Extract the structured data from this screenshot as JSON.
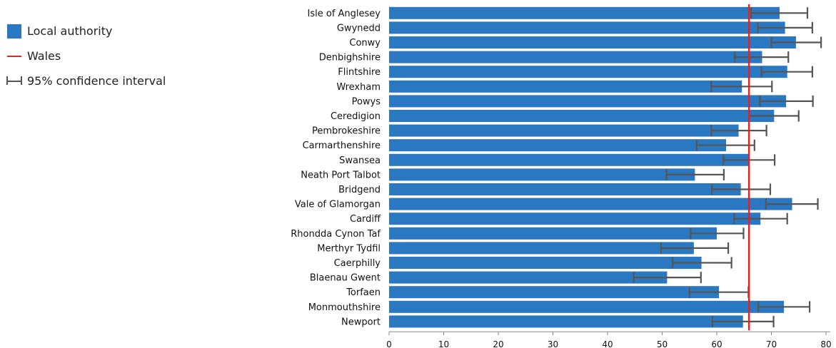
{
  "legend": {
    "items": [
      {
        "label": "Local authority",
        "color": "#2a78c1",
        "kind": "box"
      },
      {
        "label": "Wales",
        "color": "#e8201f",
        "kind": "line"
      },
      {
        "label": "95% confidence interval",
        "color": "#555555",
        "kind": "ci"
      }
    ]
  },
  "chart_data": {
    "type": "bar",
    "orientation": "horizontal",
    "title": "",
    "xlabel": "",
    "ylabel": "",
    "xlim": [
      0,
      80
    ],
    "ticks": [
      0,
      10,
      20,
      30,
      40,
      50,
      60,
      70,
      80
    ],
    "grid": false,
    "legend_position": "top-left",
    "bar_color": "#2a78c1",
    "reference": {
      "name": "Wales",
      "value": 65.9,
      "color": "#e8201f"
    },
    "ci_color": "#555555",
    "categories": [
      "Isle of Anglesey",
      "Gwynedd",
      "Conwy",
      "Denbighshire",
      "Flintshire",
      "Wrexham",
      "Powys",
      "Ceredigion",
      "Pembrokeshire",
      "Carmarthenshire",
      "Swansea",
      "Neath Port Talbot",
      "Bridgend",
      "Vale of Glamorgan",
      "Cardiff",
      "Rhondda Cynon Taf",
      "Merthyr Tydfil",
      "Caerphilly",
      "Blaenau Gwent",
      "Torfaen",
      "Monmouthshire",
      "Newport"
    ],
    "values": [
      71.5,
      72.5,
      74.5,
      68.3,
      72.9,
      64.6,
      72.7,
      70.5,
      64.0,
      61.7,
      65.8,
      56.0,
      64.4,
      73.8,
      68.0,
      60.0,
      55.8,
      57.2,
      50.9,
      60.4,
      72.3,
      64.8
    ],
    "ci_lower": [
      66.3,
      67.5,
      70.0,
      63.3,
      68.2,
      59.0,
      67.9,
      65.9,
      59.0,
      56.3,
      61.2,
      50.8,
      59.1,
      69.0,
      63.2,
      55.2,
      49.8,
      51.9,
      44.8,
      55.0,
      67.6,
      59.2
    ],
    "ci_upper": [
      76.6,
      77.5,
      79.1,
      73.1,
      77.5,
      70.1,
      77.6,
      75.0,
      69.1,
      66.9,
      70.6,
      61.3,
      69.8,
      78.5,
      72.9,
      64.9,
      62.1,
      62.7,
      57.1,
      65.8,
      77.0,
      70.4
    ]
  }
}
